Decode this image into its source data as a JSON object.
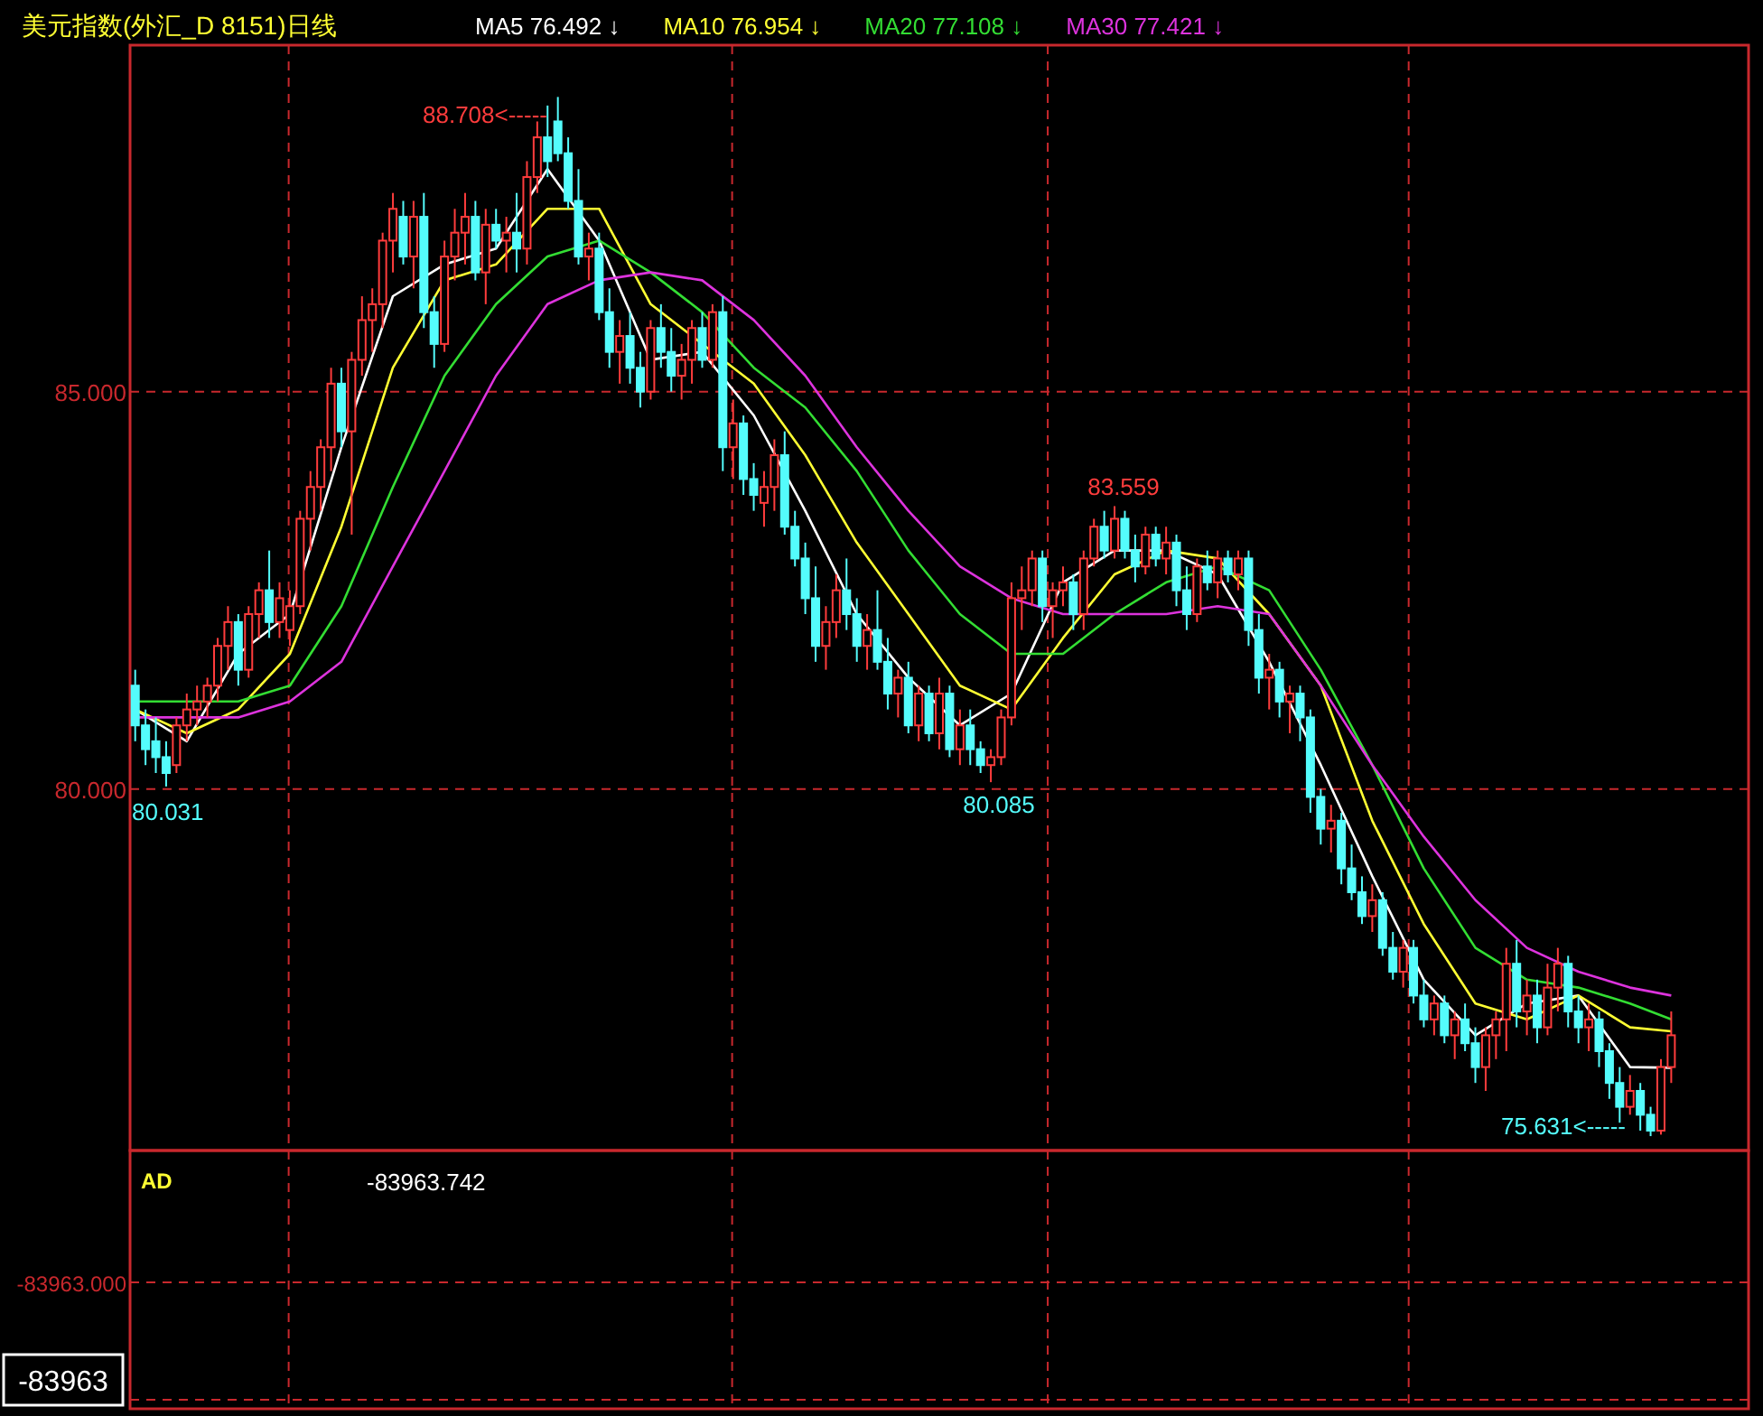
{
  "chart_data": [
    {
      "type": "candlestick",
      "title": "美元指数(外汇_D 8151)日线",
      "legend": "top",
      "grid": "y",
      "ylim": [
        75.45,
        89.36
      ],
      "yticks": [
        {
          "value": 80,
          "label": "80.000"
        },
        {
          "value": 85,
          "label": "85.000"
        }
      ],
      "categories": [
        null,
        null,
        null,
        null,
        null,
        null,
        null,
        null,
        null,
        null,
        null,
        null,
        null,
        null,
        null,
        null,
        null,
        null,
        null,
        null,
        null,
        null,
        null,
        null,
        null,
        null,
        null,
        null,
        null,
        null,
        null,
        null,
        null,
        null,
        null,
        null,
        null,
        null,
        null,
        null,
        null,
        null,
        null,
        null,
        null,
        null,
        null,
        null,
        null,
        null,
        null,
        null,
        null,
        null,
        null,
        null,
        null,
        null,
        null,
        null,
        null,
        null,
        null,
        null,
        null,
        null,
        null,
        null,
        null,
        null,
        null,
        null,
        null,
        null,
        null,
        null,
        null,
        null,
        null,
        null,
        null,
        null,
        null,
        null,
        null,
        null,
        null,
        null,
        null,
        null,
        null,
        null,
        null,
        null,
        null,
        null,
        null,
        null,
        null,
        null,
        null,
        null,
        null,
        null,
        null,
        null,
        null,
        null,
        null,
        null,
        null,
        null,
        null,
        null,
        null,
        null,
        null,
        null,
        null,
        null,
        null,
        null,
        null,
        null,
        null,
        null,
        null,
        null,
        null,
        null,
        null,
        null,
        null,
        null,
        null,
        null,
        null,
        null,
        null,
        null,
        null,
        null,
        null,
        null,
        null,
        null,
        null,
        null,
        null,
        null,
        null,
        null,
        null,
        null,
        null,
        null,
        null
      ],
      "ohlc": [
        [
          81.3,
          81.5,
          80.6,
          80.8
        ],
        [
          80.8,
          81.0,
          80.3,
          80.5
        ],
        [
          80.6,
          80.9,
          80.2,
          80.4
        ],
        [
          80.4,
          80.6,
          80.031,
          80.2
        ],
        [
          80.3,
          80.9,
          80.2,
          80.8
        ],
        [
          80.8,
          81.2,
          80.6,
          81.0
        ],
        [
          81.0,
          81.3,
          80.8,
          81.1
        ],
        [
          81.1,
          81.4,
          80.9,
          81.3
        ],
        [
          81.3,
          81.9,
          81.1,
          81.8
        ],
        [
          81.8,
          82.3,
          81.5,
          82.1
        ],
        [
          82.1,
          82.2,
          81.3,
          81.5
        ],
        [
          81.5,
          82.3,
          81.4,
          82.2
        ],
        [
          82.2,
          82.6,
          81.9,
          82.5
        ],
        [
          82.5,
          83.0,
          81.9,
          82.1
        ],
        [
          82.1,
          82.6,
          81.9,
          82.4
        ],
        [
          82.0,
          82.5,
          81.8,
          82.3
        ],
        [
          82.3,
          83.5,
          82.2,
          83.4
        ],
        [
          83.4,
          84.0,
          83.0,
          83.8
        ],
        [
          83.8,
          84.4,
          83.5,
          84.3
        ],
        [
          84.3,
          85.3,
          84.0,
          85.1
        ],
        [
          85.1,
          85.3,
          84.3,
          84.5
        ],
        [
          84.5,
          85.5,
          83.2,
          85.4
        ],
        [
          85.4,
          86.2,
          85.2,
          85.9
        ],
        [
          85.9,
          86.3,
          85.5,
          86.1
        ],
        [
          86.1,
          87.0,
          85.8,
          86.9
        ],
        [
          86.9,
          87.5,
          86.5,
          87.3
        ],
        [
          87.2,
          87.4,
          86.6,
          86.7
        ],
        [
          86.7,
          87.4,
          86.3,
          87.2
        ],
        [
          87.2,
          87.5,
          85.8,
          86.0
        ],
        [
          86.0,
          86.2,
          85.3,
          85.6
        ],
        [
          85.6,
          86.9,
          85.5,
          86.7
        ],
        [
          86.7,
          87.3,
          86.4,
          87.0
        ],
        [
          87.0,
          87.5,
          86.6,
          87.2
        ],
        [
          87.2,
          87.4,
          86.4,
          86.5
        ],
        [
          86.5,
          87.3,
          86.1,
          87.1
        ],
        [
          87.1,
          87.3,
          86.8,
          86.9
        ],
        [
          86.9,
          87.2,
          86.5,
          87.0
        ],
        [
          87.0,
          87.5,
          86.5,
          86.8
        ],
        [
          86.8,
          87.9,
          86.6,
          87.7
        ],
        [
          87.7,
          88.4,
          87.5,
          88.2
        ],
        [
          88.2,
          88.6,
          87.7,
          87.9
        ],
        [
          88.4,
          88.708,
          87.9,
          88.0
        ],
        [
          88.0,
          88.2,
          87.3,
          87.4
        ],
        [
          87.4,
          87.8,
          86.6,
          86.7
        ],
        [
          86.7,
          87.0,
          86.4,
          86.8
        ],
        [
          86.8,
          87.0,
          85.9,
          86.0
        ],
        [
          86.0,
          86.3,
          85.3,
          85.5
        ],
        [
          85.5,
          85.9,
          85.1,
          85.7
        ],
        [
          85.7,
          86.0,
          85.1,
          85.3
        ],
        [
          85.3,
          85.5,
          84.8,
          85.0
        ],
        [
          85.0,
          85.9,
          84.9,
          85.8
        ],
        [
          85.8,
          86.1,
          85.3,
          85.5
        ],
        [
          85.5,
          85.8,
          85.0,
          85.2
        ],
        [
          85.2,
          85.6,
          84.9,
          85.4
        ],
        [
          85.4,
          85.9,
          85.1,
          85.8
        ],
        [
          85.8,
          86.0,
          85.3,
          85.4
        ],
        [
          85.4,
          86.1,
          85.3,
          86.0
        ],
        [
          86.0,
          86.2,
          84.0,
          84.3
        ],
        [
          84.3,
          84.9,
          83.9,
          84.6
        ],
        [
          84.6,
          84.7,
          83.7,
          83.9
        ],
        [
          83.9,
          84.1,
          83.5,
          83.7
        ],
        [
          83.6,
          84.0,
          83.3,
          83.8
        ],
        [
          83.8,
          84.4,
          83.5,
          84.2
        ],
        [
          84.2,
          84.5,
          83.2,
          83.3
        ],
        [
          83.3,
          83.5,
          82.8,
          82.9
        ],
        [
          82.9,
          83.1,
          82.2,
          82.4
        ],
        [
          82.4,
          82.8,
          81.6,
          81.8
        ],
        [
          81.8,
          82.3,
          81.5,
          82.1
        ],
        [
          82.1,
          82.7,
          81.9,
          82.5
        ],
        [
          82.5,
          82.9,
          82.0,
          82.2
        ],
        [
          82.2,
          82.4,
          81.6,
          81.8
        ],
        [
          81.8,
          82.2,
          81.5,
          82.0
        ],
        [
          82.0,
          82.5,
          81.5,
          81.6
        ],
        [
          81.6,
          81.9,
          81.0,
          81.2
        ],
        [
          81.2,
          81.5,
          80.9,
          81.4
        ],
        [
          81.4,
          81.6,
          80.7,
          80.8
        ],
        [
          80.8,
          81.3,
          80.6,
          81.2
        ],
        [
          81.2,
          81.3,
          80.6,
          80.7
        ],
        [
          80.7,
          81.4,
          80.5,
          81.2
        ],
        [
          81.2,
          81.3,
          80.4,
          80.5
        ],
        [
          80.5,
          81.0,
          80.3,
          80.8
        ],
        [
          80.8,
          81.0,
          80.3,
          80.5
        ],
        [
          80.5,
          80.6,
          80.2,
          80.3
        ],
        [
          80.3,
          80.5,
          80.085,
          80.4
        ],
        [
          80.4,
          81.0,
          80.3,
          80.9
        ],
        [
          80.9,
          82.6,
          80.8,
          82.4
        ],
        [
          82.4,
          82.8,
          82.0,
          82.5
        ],
        [
          82.5,
          83.0,
          82.3,
          82.9
        ],
        [
          82.9,
          83.0,
          82.1,
          82.3
        ],
        [
          82.3,
          82.6,
          81.9,
          82.5
        ],
        [
          82.5,
          82.8,
          82.3,
          82.6
        ],
        [
          82.6,
          82.7,
          82.0,
          82.2
        ],
        [
          82.2,
          83.0,
          82.0,
          82.9
        ],
        [
          82.9,
          83.4,
          82.8,
          83.3
        ],
        [
          83.3,
          83.5,
          82.9,
          83.0
        ],
        [
          83.0,
          83.559,
          82.9,
          83.4
        ],
        [
          83.4,
          83.5,
          82.9,
          83.0
        ],
        [
          83.0,
          83.2,
          82.6,
          82.8
        ],
        [
          82.8,
          83.3,
          82.7,
          83.2
        ],
        [
          83.2,
          83.3,
          82.8,
          82.9
        ],
        [
          82.9,
          83.3,
          82.7,
          83.1
        ],
        [
          83.1,
          83.2,
          82.3,
          82.5
        ],
        [
          82.5,
          82.8,
          82.0,
          82.2
        ],
        [
          82.2,
          82.9,
          82.1,
          82.8
        ],
        [
          82.8,
          83.0,
          82.5,
          82.6
        ],
        [
          82.6,
          83.0,
          82.4,
          82.9
        ],
        [
          82.9,
          83.0,
          82.6,
          82.7
        ],
        [
          82.7,
          83.0,
          82.5,
          82.9
        ],
        [
          82.9,
          83.0,
          81.8,
          82.0
        ],
        [
          82.0,
          82.2,
          81.2,
          81.4
        ],
        [
          81.4,
          81.7,
          81.0,
          81.5
        ],
        [
          81.5,
          81.6,
          80.9,
          81.1
        ],
        [
          81.1,
          81.3,
          80.7,
          81.2
        ],
        [
          81.2,
          81.3,
          80.6,
          80.9
        ],
        [
          80.9,
          81.0,
          79.7,
          79.9
        ],
        [
          79.9,
          80.0,
          79.3,
          79.5
        ],
        [
          79.5,
          79.8,
          79.2,
          79.6
        ],
        [
          79.6,
          79.7,
          78.8,
          79.0
        ],
        [
          79.0,
          79.3,
          78.6,
          78.7
        ],
        [
          78.7,
          78.9,
          78.3,
          78.4
        ],
        [
          78.4,
          78.8,
          78.2,
          78.6
        ],
        [
          78.6,
          78.7,
          77.9,
          78.0
        ],
        [
          78.0,
          78.2,
          77.6,
          77.7
        ],
        [
          77.7,
          78.1,
          77.5,
          78.0
        ],
        [
          78.0,
          78.1,
          77.3,
          77.4
        ],
        [
          77.4,
          77.6,
          77.0,
          77.1
        ],
        [
          77.1,
          77.4,
          76.9,
          77.3
        ],
        [
          77.3,
          77.4,
          76.8,
          76.9
        ],
        [
          76.9,
          77.2,
          76.6,
          77.1
        ],
        [
          77.1,
          77.3,
          76.7,
          76.8
        ],
        [
          76.8,
          77.0,
          76.3,
          76.5
        ],
        [
          76.5,
          77.0,
          76.2,
          76.9
        ],
        [
          76.9,
          77.2,
          76.6,
          77.1
        ],
        [
          77.1,
          78.0,
          76.7,
          77.8
        ],
        [
          77.8,
          78.1,
          77.0,
          77.2
        ],
        [
          77.2,
          77.6,
          76.9,
          77.4
        ],
        [
          77.4,
          77.6,
          76.8,
          77.0
        ],
        [
          77.0,
          77.8,
          76.9,
          77.5
        ],
        [
          77.5,
          78.0,
          77.2,
          77.8
        ],
        [
          77.8,
          77.9,
          77.0,
          77.2
        ],
        [
          77.2,
          77.4,
          76.8,
          77.0
        ],
        [
          77.0,
          77.3,
          76.7,
          77.1
        ],
        [
          77.1,
          77.2,
          76.5,
          76.7
        ],
        [
          76.7,
          76.8,
          76.1,
          76.3
        ],
        [
          76.3,
          76.5,
          75.8,
          76.0
        ],
        [
          76.0,
          76.4,
          75.9,
          76.2
        ],
        [
          76.2,
          76.3,
          75.7,
          75.9
        ],
        [
          75.9,
          76.0,
          75.631,
          75.7
        ],
        [
          75.7,
          76.6,
          75.65,
          76.5
        ],
        [
          76.5,
          77.2,
          76.3,
          76.9
        ],
        null,
        null,
        null,
        null,
        null,
        null,
        null
      ],
      "series": [
        {
          "name": "MA5 76.492 ↓",
          "type": "line",
          "color": "#ffffff",
          "values": [
            81.0,
            null,
            null,
            null,
            null,
            80.6,
            null,
            null,
            null,
            null,
            81.7,
            null,
            null,
            null,
            null,
            82.2,
            null,
            null,
            null,
            null,
            84.3,
            null,
            null,
            null,
            null,
            86.2,
            null,
            null,
            null,
            null,
            86.6,
            null,
            null,
            null,
            null,
            86.8,
            null,
            null,
            null,
            null,
            87.8,
            null,
            null,
            null,
            null,
            86.9,
            null,
            null,
            null,
            null,
            85.4,
            null,
            null,
            null,
            null,
            85.5,
            null,
            null,
            null,
            null,
            84.7,
            null,
            null,
            null,
            null,
            83.5,
            null,
            null,
            null,
            null,
            82.2,
            null,
            null,
            null,
            null,
            81.4,
            null,
            null,
            null,
            null,
            80.8,
            null,
            null,
            null,
            null,
            81.2,
            null,
            null,
            null,
            null,
            82.6,
            null,
            null,
            null,
            null,
            83.0,
            null,
            null,
            null,
            null,
            83.0,
            null,
            null,
            null,
            null,
            82.7,
            null,
            null,
            null,
            null,
            81.6,
            null,
            null,
            null,
            null,
            80.3,
            null,
            null,
            null,
            null,
            78.9,
            null,
            null,
            null,
            null,
            77.6,
            null,
            null,
            null,
            null,
            76.9,
            null,
            null,
            null,
            null,
            77.3,
            null,
            null,
            null,
            null,
            77.4,
            null,
            null,
            null,
            null,
            76.5,
            null,
            null,
            null,
            76.49,
            null,
            null,
            null,
            null,
            null,
            null,
            null
          ]
        },
        {
          "name": "MA10 76.954 ↓",
          "type": "line",
          "color": "#ffff33",
          "values": [
            81.0,
            null,
            null,
            null,
            null,
            80.7,
            null,
            null,
            null,
            null,
            81.0,
            null,
            null,
            null,
            null,
            81.7,
            null,
            null,
            null,
            null,
            83.3,
            null,
            null,
            null,
            null,
            85.3,
            null,
            null,
            null,
            null,
            86.4,
            null,
            null,
            null,
            null,
            86.6,
            null,
            null,
            null,
            null,
            87.3,
            null,
            null,
            null,
            null,
            87.3,
            null,
            null,
            null,
            null,
            86.1,
            null,
            null,
            null,
            null,
            85.6,
            null,
            null,
            null,
            null,
            85.1,
            null,
            null,
            null,
            null,
            84.2,
            null,
            null,
            null,
            null,
            83.1,
            null,
            null,
            null,
            null,
            82.2,
            null,
            null,
            null,
            null,
            81.3,
            null,
            null,
            null,
            null,
            81.0,
            null,
            null,
            null,
            null,
            81.9,
            null,
            null,
            null,
            null,
            82.7,
            null,
            null,
            null,
            null,
            83.0,
            null,
            null,
            null,
            null,
            82.9,
            null,
            null,
            null,
            null,
            82.2,
            null,
            null,
            null,
            null,
            81.3,
            null,
            null,
            null,
            null,
            79.6,
            null,
            null,
            null,
            null,
            78.3,
            null,
            null,
            null,
            null,
            77.3,
            null,
            null,
            null,
            null,
            77.1,
            null,
            null,
            null,
            null,
            77.4,
            null,
            null,
            null,
            null,
            77.0,
            null,
            null,
            null,
            76.95,
            null,
            null,
            null,
            null,
            null,
            null,
            null
          ]
        },
        {
          "name": "MA20 77.108 ↓",
          "type": "line",
          "color": "#33dd33",
          "values": [
            81.1,
            null,
            null,
            null,
            null,
            81.1,
            null,
            null,
            null,
            null,
            81.1,
            null,
            null,
            null,
            null,
            81.3,
            null,
            null,
            null,
            null,
            82.3,
            null,
            null,
            null,
            null,
            83.8,
            null,
            null,
            null,
            null,
            85.2,
            null,
            null,
            null,
            null,
            86.1,
            null,
            null,
            null,
            null,
            86.7,
            null,
            null,
            null,
            null,
            86.9,
            null,
            null,
            null,
            null,
            86.5,
            null,
            null,
            null,
            null,
            86.0,
            null,
            null,
            null,
            null,
            85.3,
            null,
            null,
            null,
            null,
            84.8,
            null,
            null,
            null,
            null,
            84.0,
            null,
            null,
            null,
            null,
            83.0,
            null,
            null,
            null,
            null,
            82.2,
            null,
            null,
            null,
            null,
            81.7,
            null,
            null,
            null,
            null,
            81.7,
            null,
            null,
            null,
            null,
            82.2,
            null,
            null,
            null,
            null,
            82.6,
            null,
            null,
            null,
            null,
            82.8,
            null,
            null,
            null,
            null,
            82.5,
            null,
            null,
            null,
            null,
            81.5,
            null,
            null,
            null,
            null,
            80.3,
            null,
            null,
            null,
            null,
            79.0,
            null,
            null,
            null,
            null,
            78.0,
            null,
            null,
            null,
            null,
            77.6,
            null,
            null,
            null,
            null,
            77.5,
            null,
            null,
            null,
            null,
            77.3,
            null,
            null,
            null,
            77.1,
            null,
            null,
            null,
            null,
            null,
            null,
            null
          ]
        },
        {
          "name": "MA30 77.421 ↓",
          "type": "line",
          "color": "#dd33dd",
          "values": [
            80.9,
            null,
            null,
            null,
            null,
            80.9,
            null,
            null,
            null,
            null,
            80.9,
            null,
            null,
            null,
            null,
            81.1,
            null,
            null,
            null,
            null,
            81.6,
            null,
            null,
            null,
            null,
            82.8,
            null,
            null,
            null,
            null,
            84.0,
            null,
            null,
            null,
            null,
            85.2,
            null,
            null,
            null,
            null,
            86.1,
            null,
            null,
            null,
            null,
            86.4,
            null,
            null,
            null,
            null,
            86.5,
            null,
            null,
            null,
            null,
            86.4,
            null,
            null,
            null,
            null,
            85.9,
            null,
            null,
            null,
            null,
            85.2,
            null,
            null,
            null,
            null,
            84.3,
            null,
            null,
            null,
            null,
            83.5,
            null,
            null,
            null,
            null,
            82.8,
            null,
            null,
            null,
            null,
            82.4,
            null,
            null,
            null,
            null,
            82.2,
            null,
            null,
            null,
            null,
            82.2,
            null,
            null,
            null,
            null,
            82.2,
            null,
            null,
            null,
            null,
            82.3,
            null,
            null,
            null,
            null,
            82.2,
            null,
            null,
            null,
            null,
            81.3,
            null,
            null,
            null,
            null,
            80.3,
            null,
            null,
            null,
            null,
            79.4,
            null,
            null,
            null,
            null,
            78.6,
            null,
            null,
            null,
            null,
            78.0,
            null,
            null,
            null,
            null,
            77.7,
            null,
            null,
            null,
            null,
            77.5,
            null,
            null,
            null,
            77.4,
            null,
            null,
            null,
            null,
            null,
            null,
            null
          ]
        }
      ],
      "annotations": [
        "88.708<-----",
        "83.559",
        "80.031",
        "80.085",
        "75.631<-----"
      ]
    },
    {
      "type": "other",
      "title": "AD",
      "annotations": [
        "-83963.742",
        "-83963.000",
        "-83963"
      ]
    }
  ]
}
